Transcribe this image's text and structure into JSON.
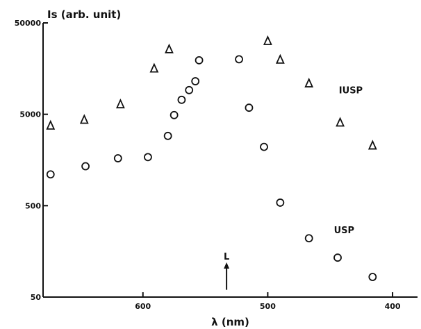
{
  "chart_data": {
    "type": "scatter",
    "x_axis": {
      "label": "λ (nm)",
      "range": [
        680,
        380
      ],
      "ticks": [
        600,
        500,
        400
      ],
      "tick_labels": [
        "600",
        "500",
        "400"
      ]
    },
    "y_axis": {
      "label": "Is (arb. unit)",
      "scale": "log",
      "range": [
        50,
        50000
      ],
      "ticks": [
        50,
        500,
        5000,
        50000
      ],
      "tick_labels": [
        "50",
        "500",
        "5000",
        "50000"
      ]
    },
    "grid": false,
    "series": [
      {
        "name": "IUSP",
        "marker": "triangle",
        "points": [
          {
            "x": 674,
            "y": 3800
          },
          {
            "x": 647,
            "y": 4400
          },
          {
            "x": 618,
            "y": 6500
          },
          {
            "x": 591,
            "y": 16000
          },
          {
            "x": 579,
            "y": 26000
          },
          {
            "x": 500,
            "y": 32000
          },
          {
            "x": 490,
            "y": 20000
          },
          {
            "x": 467,
            "y": 11000
          },
          {
            "x": 442,
            "y": 4100
          },
          {
            "x": 416,
            "y": 2300
          }
        ]
      },
      {
        "name": "USP",
        "marker": "circle",
        "points": [
          {
            "x": 674,
            "y": 1100
          },
          {
            "x": 646,
            "y": 1350
          },
          {
            "x": 620,
            "y": 1650
          },
          {
            "x": 596,
            "y": 1700
          },
          {
            "x": 580,
            "y": 2900
          },
          {
            "x": 575,
            "y": 4900
          },
          {
            "x": 569,
            "y": 7200
          },
          {
            "x": 563,
            "y": 9200
          },
          {
            "x": 558,
            "y": 11500
          },
          {
            "x": 555,
            "y": 19500
          },
          {
            "x": 523,
            "y": 20000
          },
          {
            "x": 515,
            "y": 5900
          },
          {
            "x": 503,
            "y": 2200
          },
          {
            "x": 490,
            "y": 540
          },
          {
            "x": 467,
            "y": 220
          },
          {
            "x": 444,
            "y": 135
          },
          {
            "x": 416,
            "y": 83
          }
        ]
      }
    ],
    "annotations": [
      {
        "text": "IUSP",
        "x": 443,
        "y": 8500
      },
      {
        "text": "USP",
        "x": 447,
        "y": 250
      },
      {
        "text": "L",
        "x": 533,
        "y": 70,
        "marker": "up-arrow"
      }
    ]
  }
}
